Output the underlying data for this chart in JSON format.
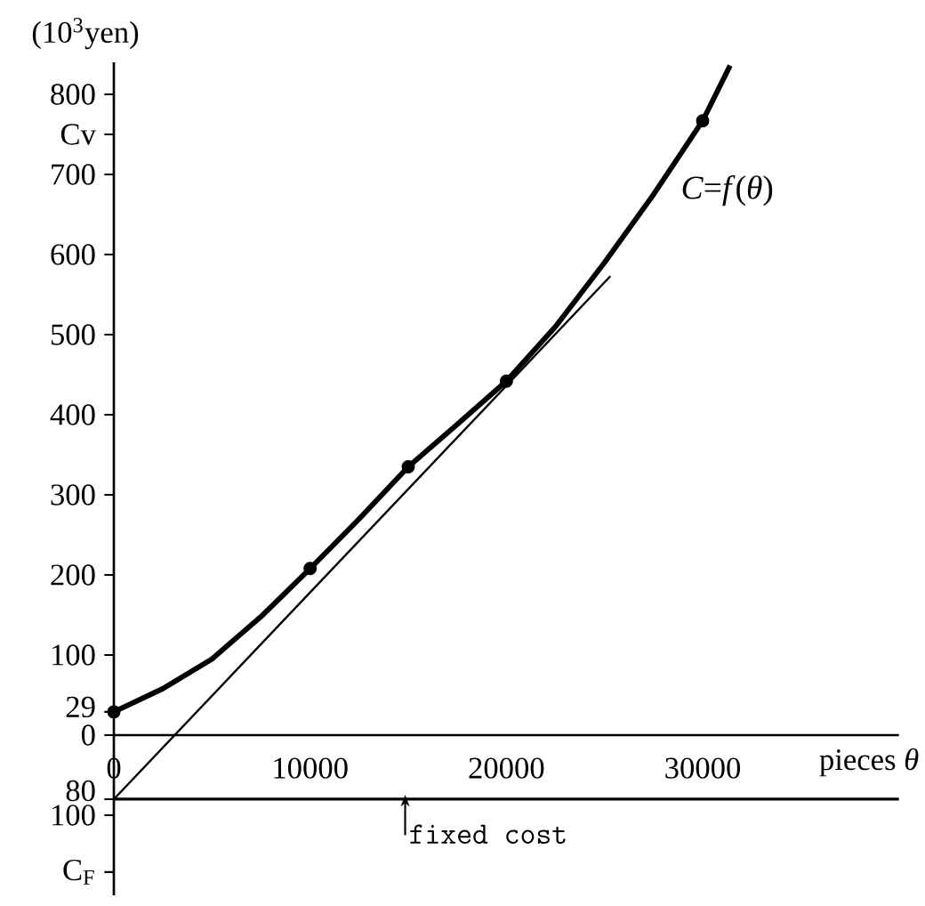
{
  "chart_data": {
    "type": "line",
    "ylabel": "(10$^{3}$yen)",
    "xlabel": "pieces *θ*",
    "xlim": [
      0,
      40000
    ],
    "ylim": [
      -200,
      840
    ],
    "xticks": [
      0,
      10000,
      20000,
      30000
    ],
    "yticks": [
      {
        "value": -171,
        "label": "C$_{F}$"
      },
      {
        "value": -100,
        "label": "100"
      },
      {
        "value": -80,
        "label": "80"
      },
      0,
      {
        "value": 29,
        "label": "29"
      },
      100,
      200,
      300,
      400,
      500,
      600,
      700,
      {
        "value": 750,
        "label": "Cv"
      },
      800
    ],
    "series": [
      {
        "name": "*C*=*f*(*θ*)",
        "color": "#000000",
        "x": [
          0,
          2500,
          5000,
          7500,
          10000,
          12500,
          15000,
          17500,
          20000,
          22500,
          25000,
          27500,
          30000,
          31400
        ],
        "values": [
          29,
          58,
          95,
          148,
          208,
          270,
          335,
          388,
          442,
          510,
          590,
          675,
          767,
          836
        ]
      },
      {
        "type": "scatter",
        "marker": "circle",
        "color": "#000000",
        "x": [
          0,
          10000,
          15000,
          20000,
          30000
        ],
        "values": [
          29,
          208,
          335,
          442,
          767
        ]
      },
      {
        "type": "line",
        "color": "#000000",
        "x": [
          0,
          25300
        ],
        "values": [
          -80,
          573
        ]
      }
    ],
    "ref_lines": [
      {
        "axis": "y",
        "value": -80
      }
    ],
    "annotations": [
      "fixed cost"
    ]
  }
}
